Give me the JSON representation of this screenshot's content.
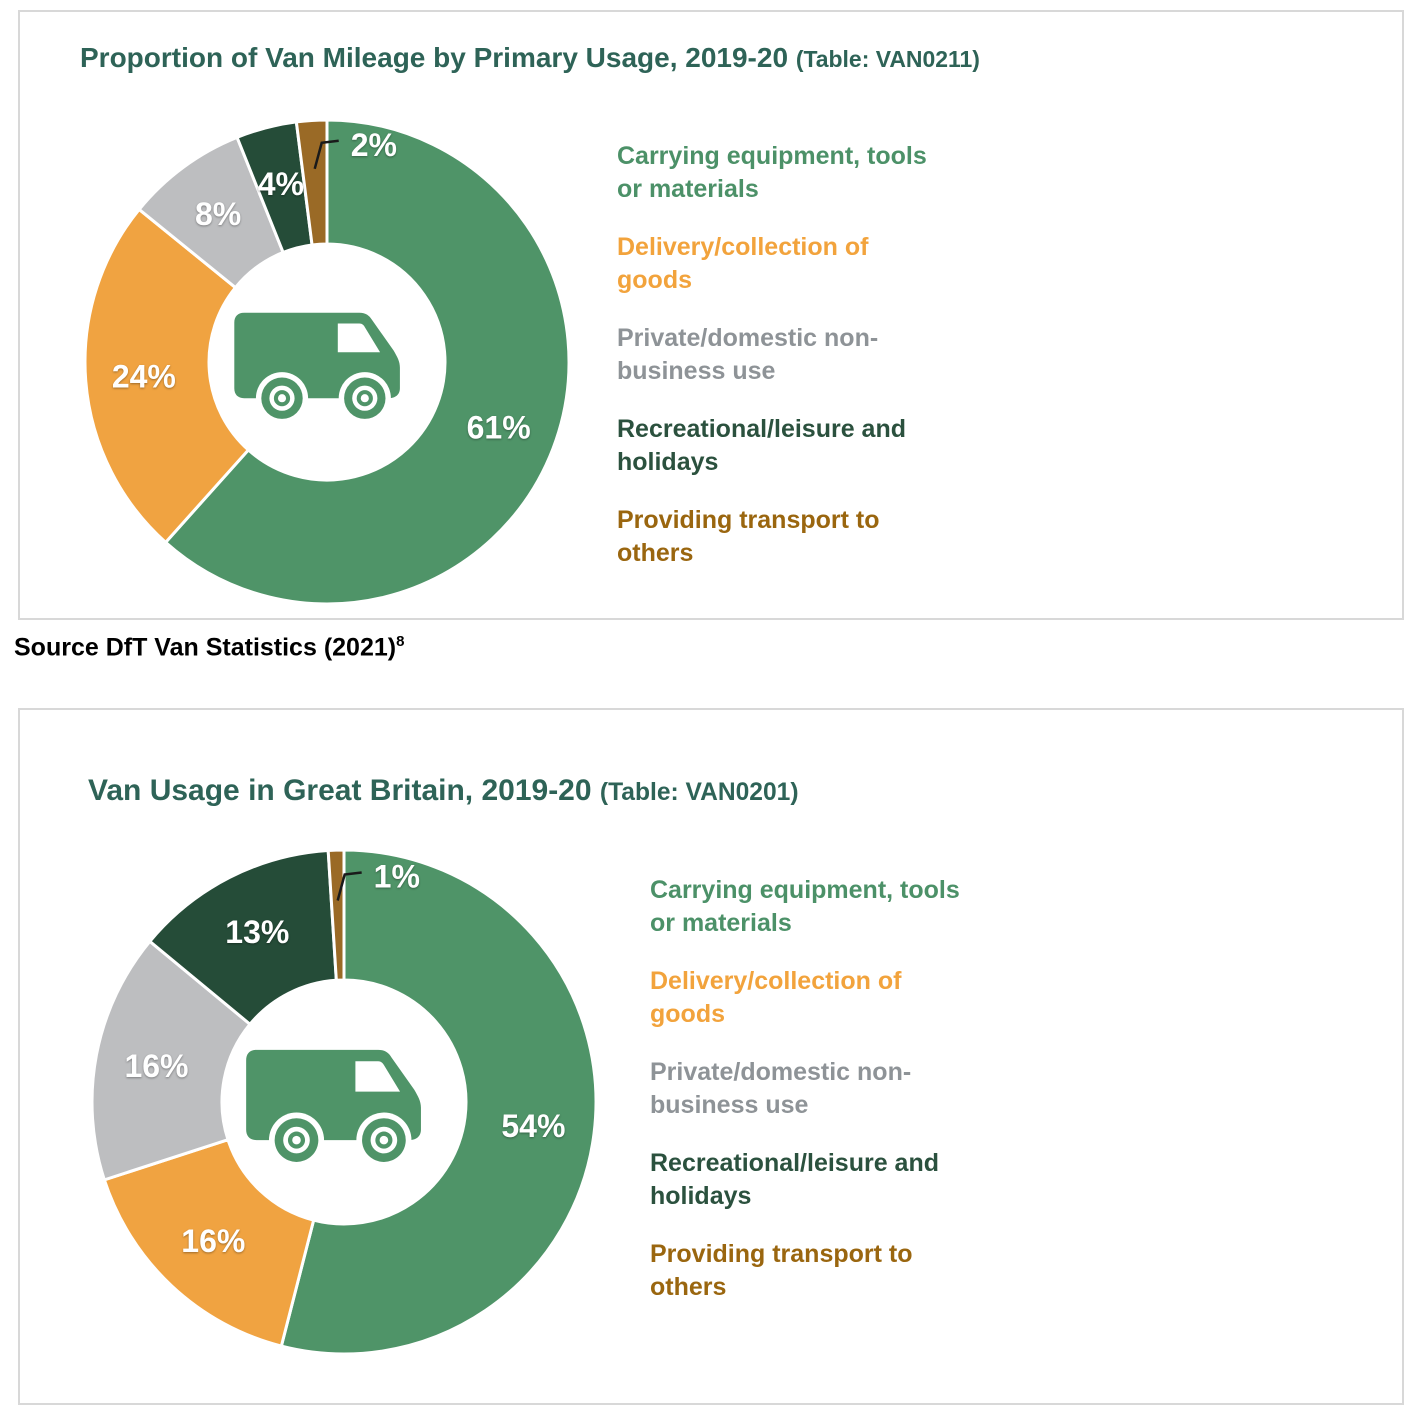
{
  "source": {
    "text": "Source DfT Van Statistics (2021)",
    "footnote": "8"
  },
  "colors": {
    "title": "#2e6357",
    "panel_border": "#d8d8d8",
    "callout": "#1a1a1a",
    "label_text": "#ffffff"
  },
  "chart_data": [
    {
      "type": "pie",
      "subtype": "donut",
      "title": "Proportion of Van Mileage by Primary Usage, 2019-20",
      "title_suffix": "(Table: VAN0211)",
      "categories": [
        "Carrying equipment, tools or materials",
        "Delivery/collection of goods",
        "Private/domestic non-business use",
        "Recreational/leisure and holidays",
        "Providing transport to others"
      ],
      "values": [
        61,
        24,
        8,
        4,
        2
      ],
      "labels": [
        "61%",
        "24%",
        "8%",
        "4%",
        "2%"
      ],
      "colors": [
        "#4f9468",
        "#f0a341",
        "#bdbec0",
        "#254c38",
        "#9a6a26"
      ],
      "unit": "%",
      "start_angle_deg": 0,
      "direction": "clockwise",
      "legend_position": "right",
      "center_icon": "van-icon",
      "legend": [
        {
          "label": "Carrying equipment, tools\nor materials",
          "color": "#4c9168"
        },
        {
          "label": "Delivery/collection of\ngoods",
          "color": "#f2a33c"
        },
        {
          "label": "Private/domestic non-\nbusiness use",
          "color": "#8e9397"
        },
        {
          "label": "Recreational/leisure and\nholidays",
          "color": "#2b513e"
        },
        {
          "label": "Providing transport to\nothers",
          "color": "#9a660f"
        }
      ]
    },
    {
      "type": "pie",
      "subtype": "donut",
      "title": "Van Usage in Great Britain, 2019-20",
      "title_suffix": "(Table: VAN0201)",
      "categories": [
        "Carrying equipment, tools or materials",
        "Delivery/collection of goods",
        "Private/domestic non-business use",
        "Recreational/leisure and holidays",
        "Providing transport to others"
      ],
      "values": [
        54,
        16,
        16,
        13,
        1
      ],
      "labels": [
        "54%",
        "16%",
        "16%",
        "13%",
        "1%"
      ],
      "colors": [
        "#4f9468",
        "#f0a341",
        "#bdbec0",
        "#254c38",
        "#9a6a26"
      ],
      "unit": "%",
      "start_angle_deg": 0,
      "direction": "clockwise",
      "legend_position": "right",
      "center_icon": "van-icon",
      "legend": [
        {
          "label": "Carrying equipment, tools\nor materials",
          "color": "#4c9168"
        },
        {
          "label": "Delivery/collection of\ngoods",
          "color": "#f2a33c"
        },
        {
          "label": "Private/domestic non-\nbusiness use",
          "color": "#8e9397"
        },
        {
          "label": "Recreational/leisure and\nholidays",
          "color": "#2b513e"
        },
        {
          "label": "Providing transport to\nothers",
          "color": "#9a660f"
        }
      ]
    }
  ]
}
